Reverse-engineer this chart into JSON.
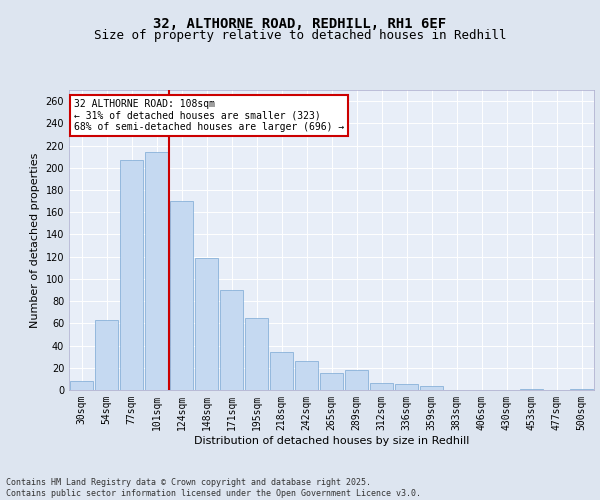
{
  "title1": "32, ALTHORNE ROAD, REDHILL, RH1 6EF",
  "title2": "Size of property relative to detached houses in Redhill",
  "xlabel": "Distribution of detached houses by size in Redhill",
  "ylabel": "Number of detached properties",
  "categories": [
    "30sqm",
    "54sqm",
    "77sqm",
    "101sqm",
    "124sqm",
    "148sqm",
    "171sqm",
    "195sqm",
    "218sqm",
    "242sqm",
    "265sqm",
    "289sqm",
    "312sqm",
    "336sqm",
    "359sqm",
    "383sqm",
    "406sqm",
    "430sqm",
    "453sqm",
    "477sqm",
    "500sqm"
  ],
  "values": [
    8,
    63,
    207,
    214,
    170,
    119,
    90,
    65,
    34,
    26,
    15,
    18,
    6,
    5,
    4,
    0,
    0,
    0,
    1,
    0,
    1
  ],
  "bar_color": "#c5d9f1",
  "bar_edge_color": "#7aa8d4",
  "red_line_index": 3,
  "annotation_line1": "32 ALTHORNE ROAD: 108sqm",
  "annotation_line2": "← 31% of detached houses are smaller (323)",
  "annotation_line3": "68% of semi-detached houses are larger (696) →",
  "annotation_box_color": "#ffffff",
  "annotation_box_edge": "#cc0000",
  "ylim": [
    0,
    270
  ],
  "yticks": [
    0,
    20,
    40,
    60,
    80,
    100,
    120,
    140,
    160,
    180,
    200,
    220,
    240,
    260
  ],
  "bg_color": "#dde5f0",
  "plot_bg_color": "#e8eef8",
  "grid_color": "#ffffff",
  "footer_line1": "Contains HM Land Registry data © Crown copyright and database right 2025.",
  "footer_line2": "Contains public sector information licensed under the Open Government Licence v3.0.",
  "title1_fontsize": 10,
  "title2_fontsize": 9,
  "xlabel_fontsize": 8,
  "ylabel_fontsize": 8,
  "tick_fontsize": 7,
  "annotation_fontsize": 7,
  "footer_fontsize": 6
}
